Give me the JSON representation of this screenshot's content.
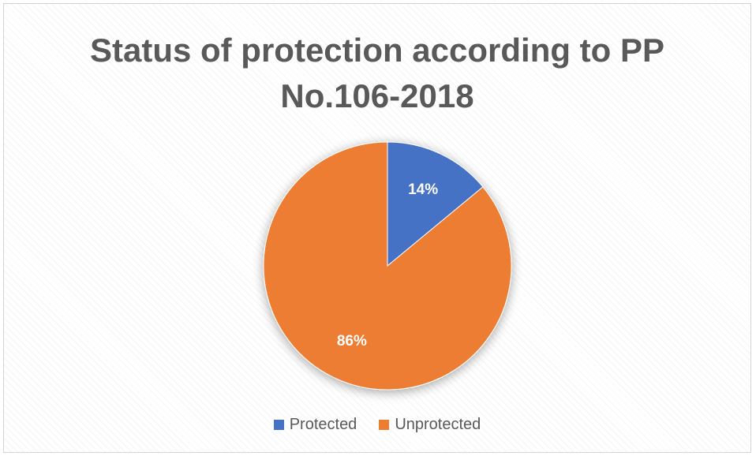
{
  "chart_data": {
    "type": "pie",
    "title_lines": [
      "Status of protection according to PP",
      "No.106-2018"
    ],
    "categories": [
      "Protected",
      "Unprotected"
    ],
    "values": [
      14,
      86
    ],
    "data_labels": [
      "14%",
      "86%"
    ],
    "colors": [
      "#4472c4",
      "#ed7d31"
    ],
    "legend_position": "bottom"
  }
}
